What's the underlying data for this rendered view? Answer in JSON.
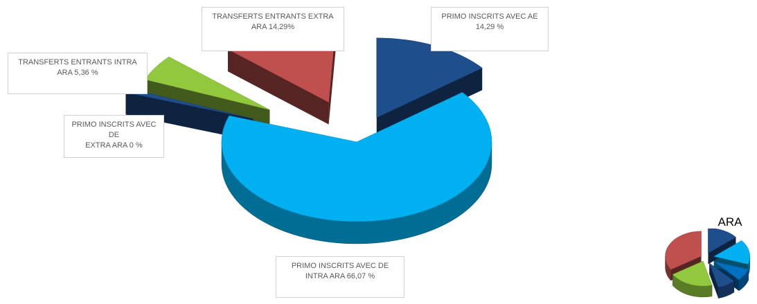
{
  "chart_data": [
    {
      "type": "pie",
      "title": "",
      "slices": [
        {
          "key": "primo_ae",
          "line1": "PRIMO INSCRITS AVEC AE",
          "line2": "14,29 %",
          "value": 14.29,
          "color": "#1F4E8C"
        },
        {
          "key": "primo_intra",
          "line1": "PRIMO INSCRITS AVEC DE",
          "line2": "INTRA ARA 66,07 %",
          "value": 66.07,
          "color": "#00B0F0"
        },
        {
          "key": "primo_extra",
          "line1": "PRIMO INSCRITS AVEC DE",
          "line2": "EXTRA ARA 0 %",
          "value": 0,
          "color": "#1F4E8C"
        },
        {
          "key": "transf_intra",
          "line1": "TRANSFERTS ENTRANTS INTRA",
          "line2": "ARA 5,36 %",
          "value": 5.36,
          "color": "#92C83E"
        },
        {
          "key": "transf_extra",
          "line1": "TRANSFERTS ENTRANTS EXTRA",
          "line2": "ARA 14,29%",
          "value": 14.29,
          "color": "#C0504D"
        }
      ]
    },
    {
      "type": "pie",
      "title": "ARA",
      "slices": [
        {
          "value": 14,
          "color": "#1F4E8C"
        },
        {
          "value": 16,
          "color": "#00B0F0"
        },
        {
          "value": 8,
          "color": "#0070C0"
        },
        {
          "value": 8,
          "color": "#1F4E8C"
        },
        {
          "value": 20,
          "color": "#92C83E"
        },
        {
          "value": 34,
          "color": "#C0504D"
        }
      ]
    }
  ]
}
